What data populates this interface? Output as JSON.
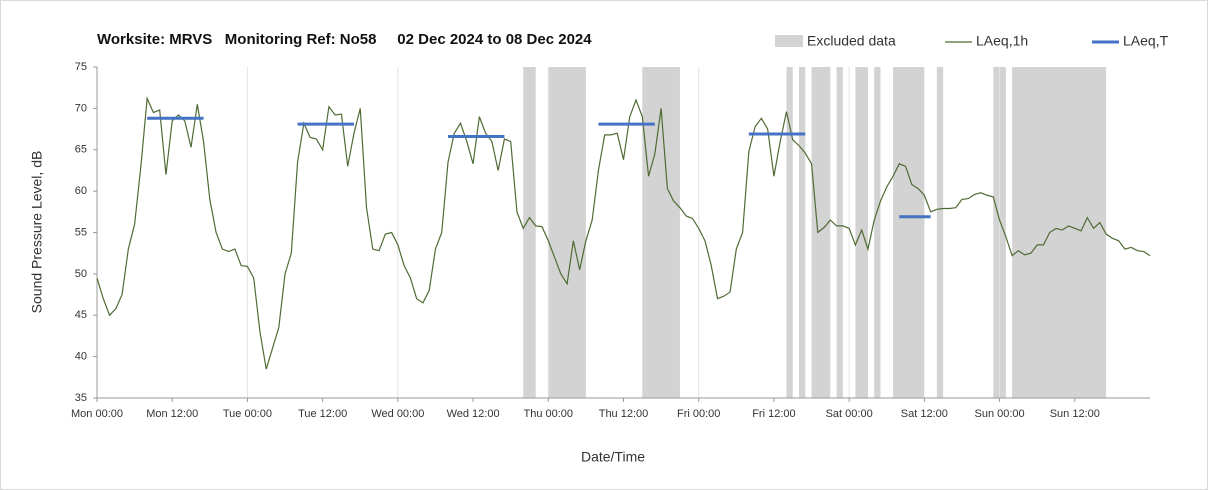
{
  "chart_data": {
    "type": "line",
    "title": "Worksite: MRVS   Monitoring Ref: No58     02 Dec 2024 to 08 Dec 2024",
    "xlabel": "Date/Time",
    "ylabel": "Sound Pressure Level, dB",
    "xlim": [
      0,
      168
    ],
    "ylim": [
      35,
      75
    ],
    "yticks": [
      35,
      40,
      45,
      50,
      55,
      60,
      65,
      70,
      75
    ],
    "xticks": [
      {
        "value": 0,
        "label": "Mon 00:00"
      },
      {
        "value": 12,
        "label": "Mon 12:00"
      },
      {
        "value": 24,
        "label": "Tue 00:00"
      },
      {
        "value": 36,
        "label": "Tue 12:00"
      },
      {
        "value": 48,
        "label": "Wed 00:00"
      },
      {
        "value": 60,
        "label": "Wed 12:00"
      },
      {
        "value": 72,
        "label": "Thu 00:00"
      },
      {
        "value": 84,
        "label": "Thu 12:00"
      },
      {
        "value": 96,
        "label": "Fri 00:00"
      },
      {
        "value": 108,
        "label": "Fri 12:00"
      },
      {
        "value": 120,
        "label": "Sat 00:00"
      },
      {
        "value": 132,
        "label": "Sat 12:00"
      },
      {
        "value": 144,
        "label": "Sun 00:00"
      },
      {
        "value": 156,
        "label": "Sun 12:00"
      }
    ],
    "grid": "x",
    "excluded": {
      "name": "Excluded data",
      "color": "#d3d3d3",
      "ranges": [
        [
          68,
          70
        ],
        [
          72,
          78
        ],
        [
          87,
          93
        ],
        [
          110,
          111
        ],
        [
          112,
          113
        ],
        [
          114,
          117
        ],
        [
          118,
          119
        ],
        [
          121,
          123
        ],
        [
          124,
          125
        ],
        [
          127,
          132
        ],
        [
          134,
          135
        ],
        [
          143,
          145
        ],
        [
          146,
          161
        ]
      ]
    },
    "series": [
      {
        "name": "LAeq,1h",
        "color": "#4f6b34",
        "x": [
          0,
          1,
          2,
          3,
          4,
          5,
          6,
          7,
          8,
          9,
          10,
          11,
          12,
          13,
          14,
          15,
          16,
          17,
          18,
          19,
          20,
          21,
          22,
          23,
          24,
          25,
          26,
          27,
          28,
          29,
          30,
          31,
          32,
          33,
          34,
          35,
          36,
          37,
          38,
          39,
          40,
          41,
          42,
          43,
          44,
          45,
          46,
          47,
          48,
          49,
          50,
          51,
          52,
          53,
          54,
          55,
          56,
          57,
          58,
          59,
          60,
          61,
          62,
          63,
          64,
          65,
          66,
          67,
          68,
          69,
          70,
          71,
          72,
          73,
          74,
          75,
          76,
          77,
          78,
          79,
          80,
          81,
          82,
          83,
          84,
          85,
          86,
          87,
          88,
          89,
          90,
          91,
          92,
          93,
          94,
          95,
          96,
          97,
          98,
          99,
          100,
          101,
          102,
          103,
          104,
          105,
          106,
          107,
          108,
          109,
          110,
          111,
          112,
          113,
          114,
          115,
          116,
          117,
          118,
          119,
          120,
          121,
          122,
          123,
          124,
          125,
          126,
          127,
          128,
          129,
          130,
          131,
          132,
          133,
          134,
          135,
          136,
          137,
          138,
          139,
          140,
          141,
          142,
          143,
          144,
          145,
          146,
          147,
          148,
          149,
          150,
          151,
          152,
          153,
          154,
          155,
          156,
          157,
          158,
          159,
          160,
          161,
          162,
          163,
          164,
          165,
          166,
          167,
          168
        ],
        "values": [
          49.5,
          47,
          45,
          45.8,
          47.5,
          53,
          56,
          63,
          71.2,
          69.5,
          69.8,
          62,
          68.5,
          69.2,
          68.5,
          65.3,
          70.5,
          66,
          59,
          55,
          53,
          52.7,
          53,
          51,
          50.9,
          49.5,
          43,
          38.5,
          41,
          43.5,
          50,
          52.5,
          63.5,
          68.2,
          66.5,
          66.3,
          65,
          70.2,
          69.2,
          69.3,
          63,
          67,
          70,
          58,
          53,
          52.8,
          54.8,
          55,
          53.5,
          51,
          49.5,
          47,
          46.5,
          48,
          53,
          55,
          63.5,
          67,
          68.2,
          66,
          63.3,
          69,
          67,
          66,
          62.5,
          66.3,
          66,
          57.5,
          55.5,
          56.8,
          55.8,
          55.7,
          54,
          52,
          50,
          48.8,
          54,
          50.5,
          54,
          56.5,
          62.5,
          66.8,
          66.8,
          67,
          63.8,
          69,
          71,
          69,
          61.8,
          64.5,
          70,
          60.3,
          58.8,
          58,
          57,
          56.7,
          55.5,
          54,
          51,
          47,
          47.3,
          47.8,
          53,
          55,
          64.8,
          67.8,
          68.8,
          67.5,
          61.8,
          66,
          69.6,
          66.2,
          65.5,
          64.6,
          63.3,
          55,
          55.6,
          56.5,
          55.8,
          55.8,
          55.5,
          53.5,
          55.3,
          53,
          56.5,
          58.8,
          60.5,
          61.8,
          63.3,
          63,
          60.8,
          60.3,
          59.5,
          57.5,
          57.8,
          57.9,
          57.9,
          58,
          59,
          59.1,
          59.6,
          59.8,
          59.5,
          59.3,
          56.5,
          54.5,
          52.2,
          52.8,
          52.3,
          52.5,
          53.5,
          53.5,
          55,
          55.5,
          55.3,
          55.8,
          55.5,
          55.2,
          56.8,
          55.5,
          56.2,
          54.8,
          54.3,
          54,
          53,
          53.2,
          52.8,
          52.7,
          52.2
        ]
      },
      {
        "name": "LAeq,T",
        "color": "#4472c4",
        "x_start": [
          8,
          32,
          56,
          80,
          104,
          128
        ],
        "x_end": [
          17,
          41,
          65,
          89,
          113,
          133
        ],
        "values": [
          68.8,
          68.1,
          66.6,
          68.1,
          66.9,
          56.9
        ]
      }
    ]
  }
}
